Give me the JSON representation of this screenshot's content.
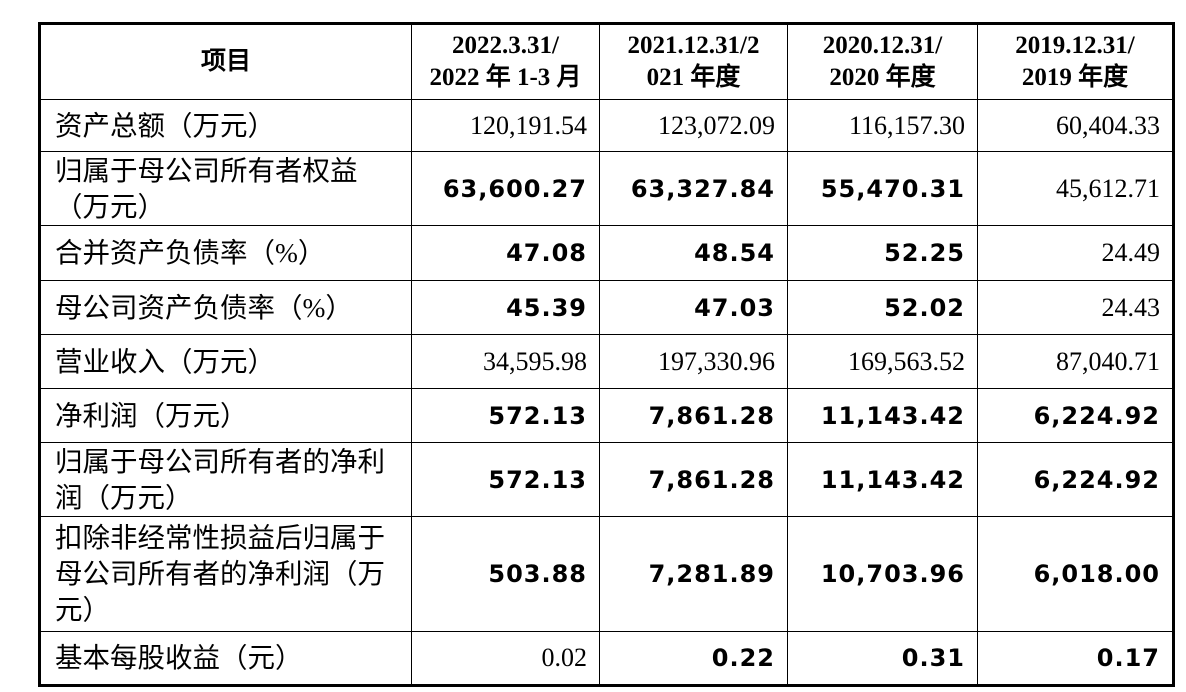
{
  "table": {
    "header": [
      [
        "项目"
      ],
      [
        "2022.3.31/",
        "2022 年 1-3 月"
      ],
      [
        "2021.12.31/2",
        "021 年度"
      ],
      [
        "2020.12.31/",
        "2020 年度"
      ],
      [
        "2019.12.31/",
        "2019 年度"
      ]
    ],
    "rows": [
      [
        "资产总额（万元）",
        "120,191.54",
        "123,072.09",
        "116,157.30",
        "60,404.33"
      ],
      [
        "归属于母公司所有者权益（万元）",
        "63,600.27",
        "63,327.84",
        "55,470.31",
        "45,612.71"
      ],
      [
        "合并资产负债率（%）",
        "47.08",
        "48.54",
        "52.25",
        "24.49"
      ],
      [
        "母公司资产负债率（%）",
        "45.39",
        "47.03",
        "52.02",
        "24.43"
      ],
      [
        "营业收入（万元）",
        "34,595.98",
        "197,330.96",
        "169,563.52",
        "87,040.71"
      ],
      [
        "净利润（万元）",
        "572.13",
        "7,861.28",
        "11,143.42",
        "6,224.92"
      ],
      [
        "归属于母公司所有者的净利润（万元）",
        "572.13",
        "7,861.28",
        "11,143.42",
        "6,224.92"
      ],
      [
        "扣除非经常性损益后归属于母公司所有者的净利润（万元）",
        "503.88",
        "7,281.89",
        "10,703.96",
        "6,018.00"
      ],
      [
        "基本每股收益（元）",
        "0.02",
        "0.22",
        "0.31",
        "0.17"
      ]
    ]
  }
}
